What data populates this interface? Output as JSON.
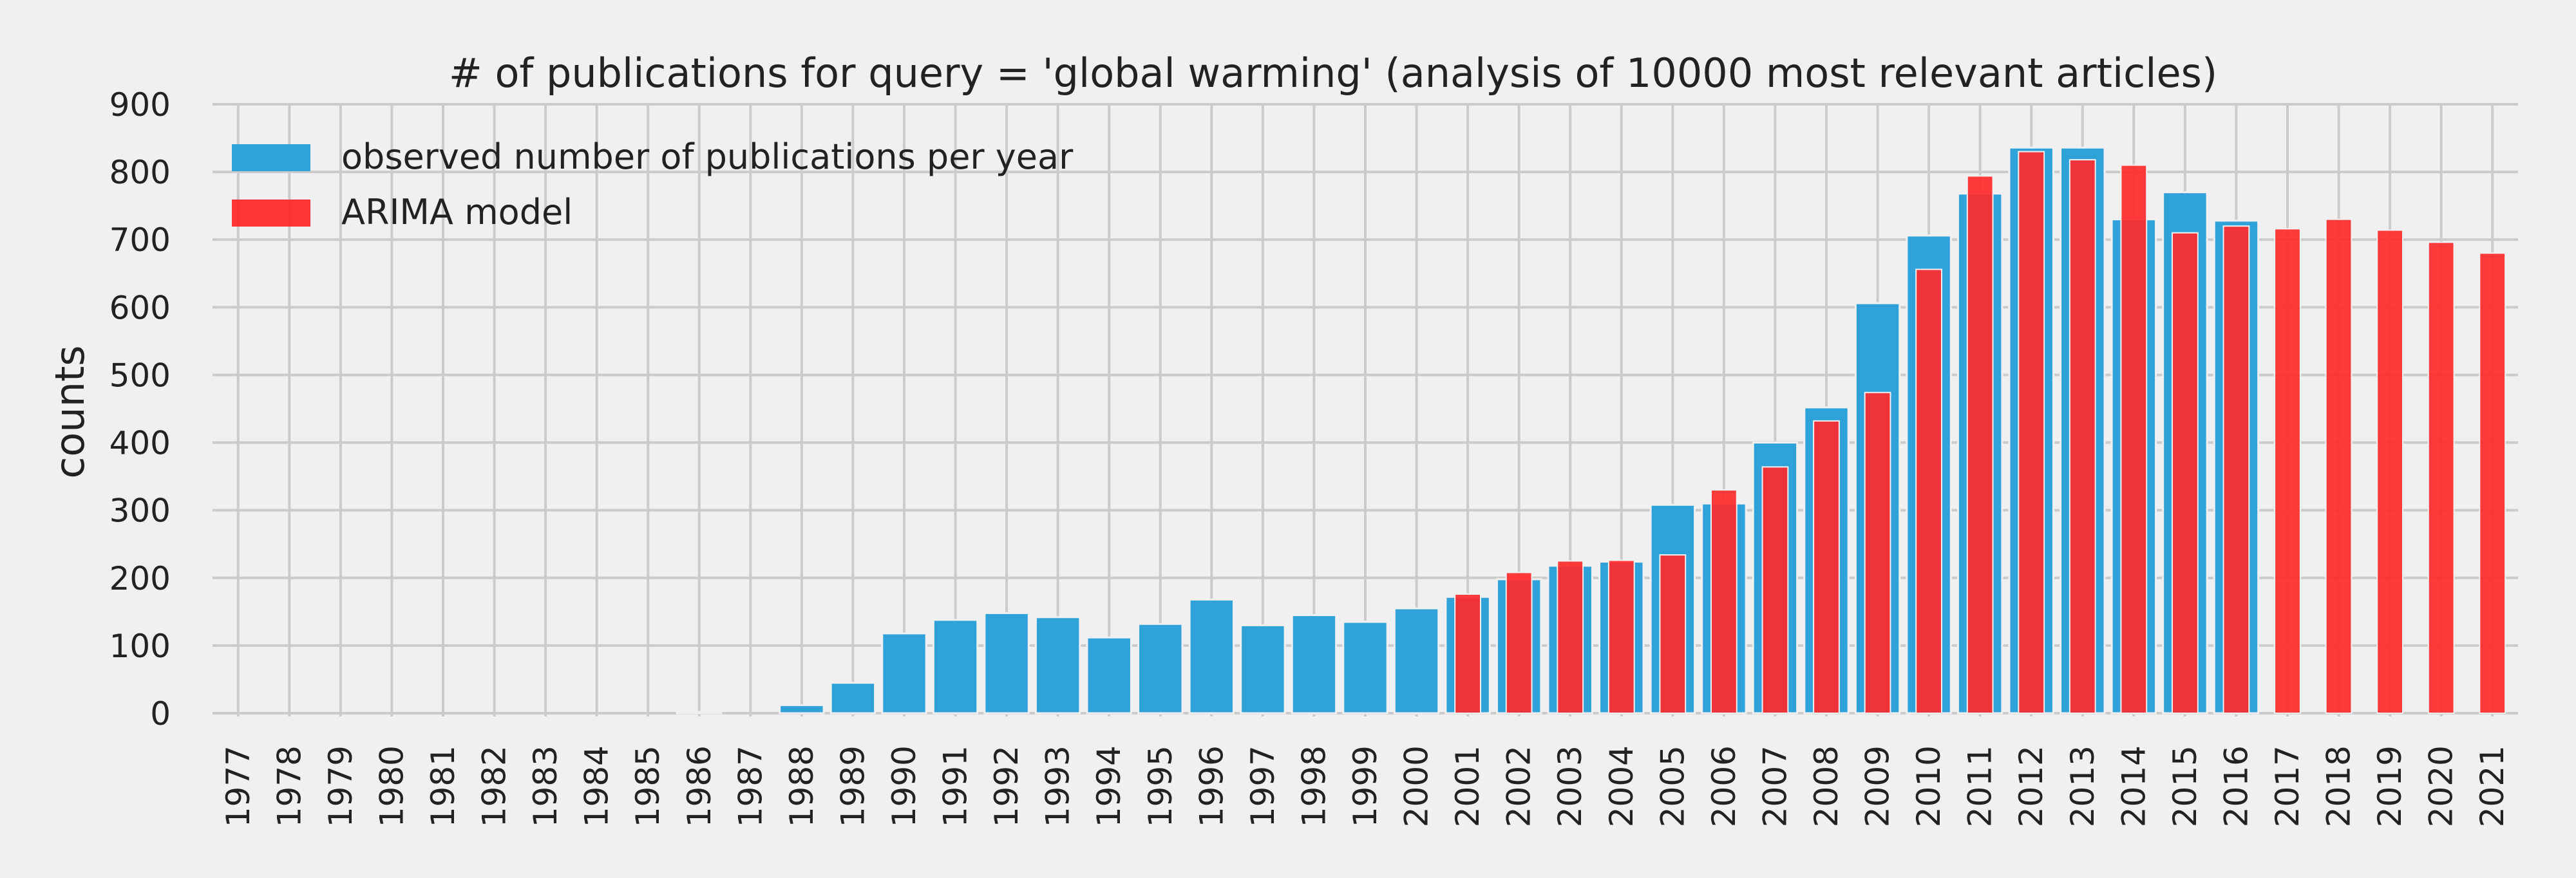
{
  "chart_data": {
    "type": "bar",
    "title": "# of publications for query = 'global warming' (analysis of 10000 most relevant articles)",
    "xlabel": "",
    "ylabel": "counts",
    "ylim": [
      0,
      900
    ],
    "yticks": [
      0,
      100,
      200,
      300,
      400,
      500,
      600,
      700,
      800,
      900
    ],
    "grid": true,
    "legend_position": "top-left",
    "categories": [
      "1977",
      "1978",
      "1979",
      "1980",
      "1981",
      "1982",
      "1983",
      "1984",
      "1985",
      "1986",
      "1987",
      "1988",
      "1989",
      "1990",
      "1991",
      "1992",
      "1993",
      "1994",
      "1995",
      "1996",
      "1997",
      "1998",
      "1999",
      "2000",
      "2001",
      "2002",
      "2003",
      "2004",
      "2005",
      "2006",
      "2007",
      "2008",
      "2009",
      "2010",
      "2011",
      "2012",
      "2013",
      "2014",
      "2015",
      "2016",
      "2017",
      "2018",
      "2019",
      "2020",
      "2021"
    ],
    "series": [
      {
        "name": "observed number of publications per year",
        "color": "#30a2da",
        "values": [
          0,
          0,
          0,
          0,
          0,
          0,
          0,
          0,
          0,
          2,
          0,
          12,
          45,
          118,
          138,
          148,
          142,
          112,
          132,
          168,
          130,
          145,
          135,
          155,
          172,
          198,
          218,
          224,
          308,
          310,
          400,
          452,
          606,
          706,
          768,
          836,
          836,
          730,
          770,
          728,
          null,
          null,
          null,
          null,
          null
        ]
      },
      {
        "name": "ARIMA model",
        "color": "#ff2a2a",
        "values": [
          null,
          null,
          null,
          null,
          null,
          null,
          null,
          null,
          null,
          null,
          null,
          null,
          null,
          null,
          null,
          null,
          null,
          null,
          null,
          null,
          null,
          null,
          null,
          null,
          176,
          208,
          225,
          226,
          234,
          330,
          364,
          432,
          474,
          656,
          794,
          830,
          818,
          810,
          710,
          720,
          716,
          730,
          714,
          696,
          680
        ]
      }
    ]
  }
}
